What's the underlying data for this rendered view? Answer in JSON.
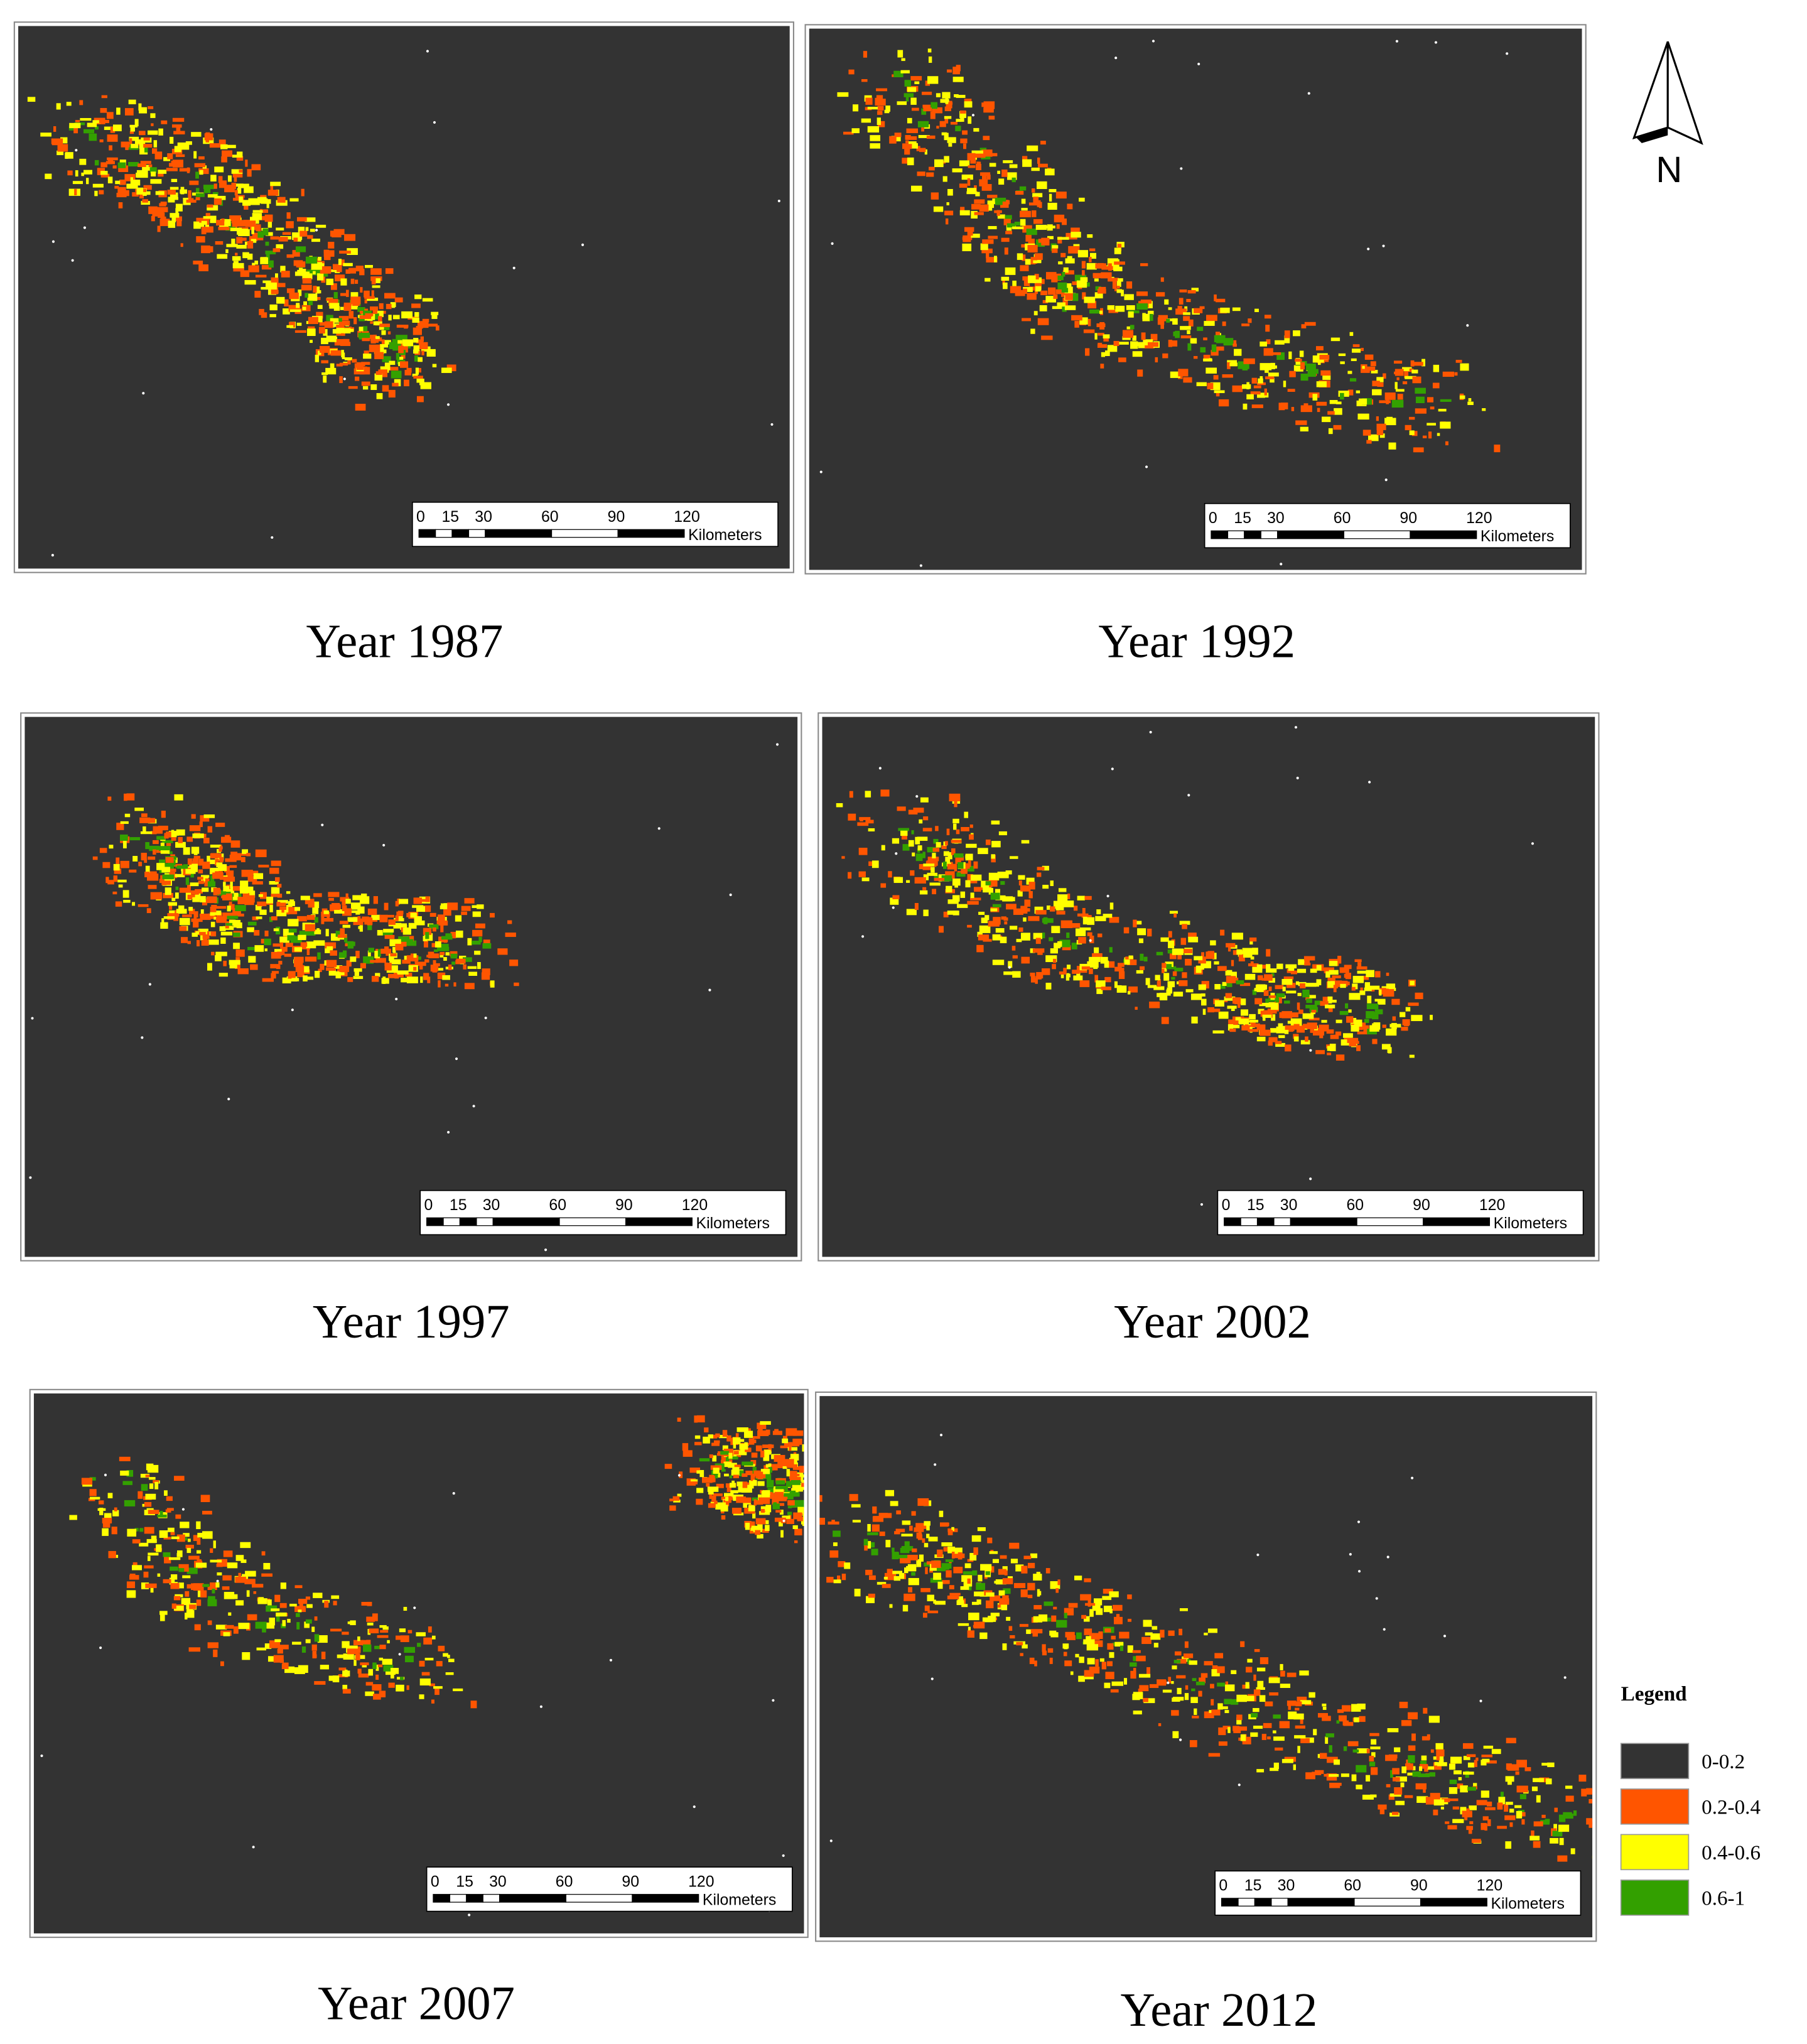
{
  "north_arrow": {
    "label": "N"
  },
  "panels": [
    {
      "title": "Year 1987"
    },
    {
      "title": "Year 1992"
    },
    {
      "title": "Year 1997"
    },
    {
      "title": "Year 2002"
    },
    {
      "title": "Year 2007"
    },
    {
      "title": "Year 2012"
    }
  ],
  "scale_bar": {
    "ticks": [
      0,
      15,
      30,
      60,
      90,
      120
    ],
    "unit": "Kilometers"
  },
  "legend": {
    "title": "Legend",
    "items": [
      {
        "label": "0-0.2",
        "color": "#333333"
      },
      {
        "label": "0.2-0.4",
        "color": "#ff5500"
      },
      {
        "label": "0.4-0.6",
        "color": "#ffff00"
      },
      {
        "label": "0.6-1",
        "color": "#33a000"
      }
    ]
  }
}
